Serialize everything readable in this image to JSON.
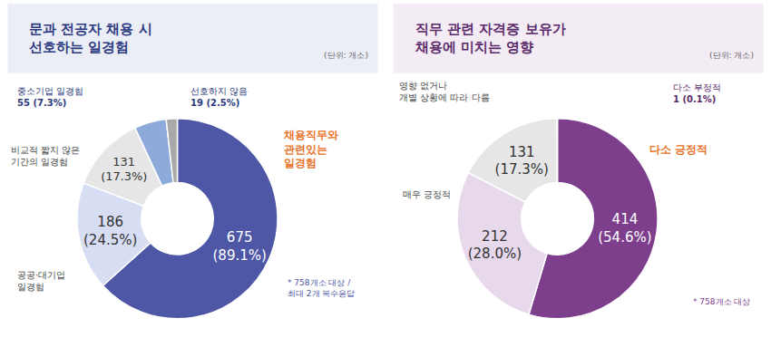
{
  "chart_data": [
    {
      "type": "pie",
      "title": "문과 전공자 채용 시\n선호하는 일경험",
      "subtitle": "(단위: 개소)",
      "annotations": [
        "* 758개소 대상 /\n최대 2개 복수응답"
      ],
      "categories": [
        "채용직무와\n관련있는\n일경험",
        "공공·대기업\n일경험",
        "비교적 짧지 않은\n기간의 일경험",
        "중소기업 일경험",
        "선호하지 않음"
      ],
      "values": [
        675,
        186,
        131,
        55,
        19
      ],
      "value_labels": [
        "675 (89.1%)",
        "186 (24.5%)",
        "131 (17.3%)",
        "55 (7.3%)",
        "19 (2.5%)"
      ],
      "colors": [
        "#4d57a6",
        "#d7ddf3",
        "#e6e6e6",
        "#8eaadb",
        "#a9a9a9"
      ],
      "data_labels": true
    },
    {
      "type": "pie",
      "title": "직무 관련 자격증 보유가\n채용에 미치는 영향",
      "subtitle": "(단위: 개소)",
      "annotations": [
        "* 758개소 대상"
      ],
      "categories": [
        "다소 긍정적",
        "매우 긍정적",
        "영향 없거나\n개별 상황에 따라 다름",
        "다소 부정적"
      ],
      "values": [
        414,
        212,
        131,
        1
      ],
      "value_labels": [
        "414 (54.6%)",
        "212 (28.0%)",
        "131 (17.3%)",
        "1 (0.1%)"
      ],
      "colors": [
        "#7d3f8c",
        "#e8d8ec",
        "#e6e6e6",
        "#5a2a6a"
      ],
      "data_labels": true
    }
  ]
}
